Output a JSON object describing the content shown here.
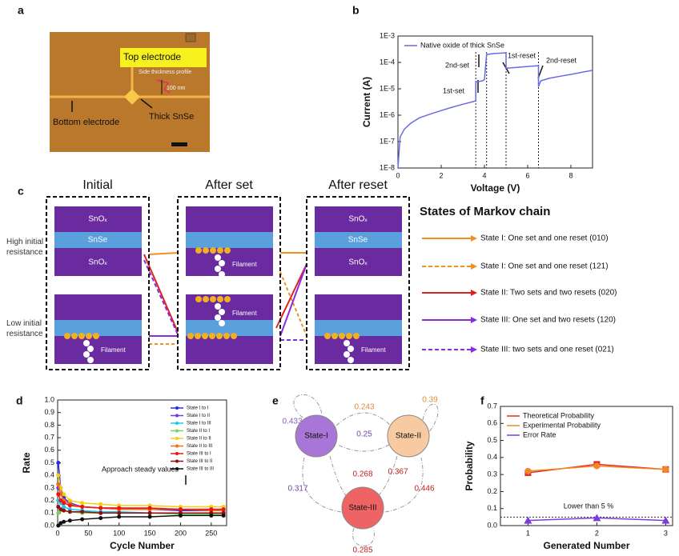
{
  "panel_a": {
    "label": "a",
    "texts": [
      "Top electrode",
      "Side thickness profile",
      "100 nm",
      "Bottom electrode",
      "Thick SnSe"
    ]
  },
  "panel_c": {
    "label": "c",
    "columns": [
      "Initial",
      "After set",
      "After reset"
    ],
    "rows": [
      "High initial resistance",
      "Low initial resistance"
    ],
    "layers": [
      "SnOₓ",
      "SnSe",
      "SnOₓ"
    ],
    "filament": "Filament",
    "legend_title": "States of Markov chain",
    "legend": [
      {
        "name": "State I: One set and one reset (010)",
        "color": "#f0901e",
        "dashed": false
      },
      {
        "name": "State I: One set and one reset (121)",
        "color": "#f0901e",
        "dashed": true
      },
      {
        "name": "State II: Two sets and two resets (020)",
        "color": "#e02020",
        "dashed": false
      },
      {
        "name": "State III: One set and two resets (120)",
        "color": "#8a2be2",
        "dashed": false
      },
      {
        "name": "State III: two sets and one reset (021)",
        "color": "#8a2be2",
        "dashed": true
      }
    ]
  },
  "panel_e": {
    "label": "e",
    "nodes": [
      {
        "label": "State-I",
        "color": "#a776d6"
      },
      {
        "label": "State-II",
        "color": "#f7caa2"
      },
      {
        "label": "State-III",
        "color": "#ee6464"
      }
    ],
    "edges": [
      {
        "value": 0.433,
        "color": "#8a5cc4"
      },
      {
        "value": 0.243,
        "color": "#e0893a"
      },
      {
        "value": 0.39,
        "color": "#e0893a"
      },
      {
        "value": 0.25,
        "color": "#7040b0"
      },
      {
        "value": 0.268,
        "color": "#c02020"
      },
      {
        "value": 0.367,
        "color": "#c02020"
      },
      {
        "value": 0.317,
        "color": "#7040b0"
      },
      {
        "value": 0.446,
        "color": "#c02020"
      },
      {
        "value": 0.285,
        "color": "#c02020"
      }
    ]
  },
  "chart_data": [
    {
      "type": "line",
      "panel_label": "b",
      "yscale": "log",
      "xlabel": "Voltage (V)",
      "ylabel": "Current (A)",
      "xlim": [
        0,
        9
      ],
      "xticks": [
        0,
        2,
        4,
        6,
        8
      ],
      "ylim": [
        1e-08,
        0.001
      ],
      "yticks": [
        {
          "value": 1e-08,
          "label": "1E-8"
        },
        {
          "value": 1e-07,
          "label": "1E-7"
        },
        {
          "value": 1e-06,
          "label": "1E-6"
        },
        {
          "value": 1e-05,
          "label": "1E-5"
        },
        {
          "value": 0.0001,
          "label": "1E-4"
        },
        {
          "value": 0.001,
          "label": "1E-3"
        }
      ],
      "legend": "upper left",
      "vlines": [
        3.6,
        4.1,
        5.0,
        6.5
      ],
      "annotations": [
        "1st-set",
        "2nd-set",
        "1st-reset",
        "2nd-reset"
      ],
      "x": [
        0,
        0.1,
        0.3,
        0.6,
        1,
        1.5,
        2,
        2.5,
        3,
        3.5,
        3.6,
        3.6,
        3.9,
        4.0,
        4.1,
        4.5,
        5.0,
        5.0,
        5.5,
        6.0,
        6.5,
        6.5,
        6.6,
        7,
        7.5,
        8,
        8.5,
        9
      ],
      "series": [
        {
          "name": "Native oxide of thick SnSe",
          "color": "#6a6ae6",
          "values": [
            1e-08,
            1.5e-07,
            3e-07,
            5e-07,
            8e-07,
            1.1e-06,
            1.5e-06,
            2e-06,
            2.6e-06,
            3.3e-06,
            3.5e-06,
            1.8e-05,
            2e-05,
            2.2e-05,
            0.0002,
            0.00022,
            0.00023,
            6e-05,
            6.5e-05,
            7e-05,
            7.5e-05,
            1.2e-05,
            2e-05,
            2.5e-05,
            3e-05,
            3.5e-05,
            4.2e-05,
            5e-05
          ]
        }
      ]
    },
    {
      "type": "line",
      "panel_label": "d",
      "xlabel": "Cycle Number",
      "ylabel": "Rate",
      "xlim": [
        0,
        275
      ],
      "xticks": [
        0,
        50,
        100,
        150,
        200,
        250
      ],
      "ylim": [
        0,
        1.0
      ],
      "yticks": [
        {
          "value": 0,
          "label": "0.0"
        },
        {
          "value": 0.1,
          "label": "0.1"
        },
        {
          "value": 0.2,
          "label": "0.2"
        },
        {
          "value": 0.3,
          "label": "0.3"
        },
        {
          "value": 0.4,
          "label": "0.4"
        },
        {
          "value": 0.5,
          "label": "0.5"
        },
        {
          "value": 0.6,
          "label": "0.6"
        },
        {
          "value": 0.7,
          "label": "0.7"
        },
        {
          "value": 0.8,
          "label": "0.8"
        },
        {
          "value": 0.9,
          "label": "0.9"
        },
        {
          "value": 1.0,
          "label": "1.0"
        }
      ],
      "legend": "upper right",
      "annotations": [
        "Approach steady values"
      ],
      "x": [
        1,
        5,
        10,
        20,
        40,
        70,
        100,
        150,
        200,
        250,
        270
      ],
      "series": [
        {
          "name": "State I to I",
          "color": "#2a2af0",
          "values": [
            0.5,
            0.3,
            0.22,
            0.18,
            0.15,
            0.14,
            0.13,
            0.13,
            0.12,
            0.12,
            0.12
          ]
        },
        {
          "name": "State I to II",
          "color": "#6a3cf0",
          "values": [
            0.3,
            0.25,
            0.2,
            0.17,
            0.15,
            0.14,
            0.14,
            0.13,
            0.13,
            0.13,
            0.13
          ]
        },
        {
          "name": "State I to III",
          "color": "#19c8f0",
          "values": [
            0.2,
            0.18,
            0.15,
            0.13,
            0.12,
            0.11,
            0.11,
            0.1,
            0.1,
            0.1,
            0.1
          ]
        },
        {
          "name": "State II to I",
          "color": "#7ccf5a",
          "values": [
            0.1,
            0.12,
            0.12,
            0.11,
            0.1,
            0.1,
            0.1,
            0.1,
            0.09,
            0.09,
            0.09
          ]
        },
        {
          "name": "State II to II",
          "color": "#f0d010",
          "values": [
            0.4,
            0.3,
            0.25,
            0.2,
            0.18,
            0.17,
            0.16,
            0.16,
            0.15,
            0.15,
            0.15
          ]
        },
        {
          "name": "State II to III",
          "color": "#f07010",
          "values": [
            0.33,
            0.25,
            0.2,
            0.17,
            0.15,
            0.14,
            0.13,
            0.13,
            0.13,
            0.12,
            0.12
          ]
        },
        {
          "name": "State III to I",
          "color": "#f01010",
          "values": [
            0.25,
            0.2,
            0.18,
            0.16,
            0.15,
            0.14,
            0.14,
            0.14,
            0.13,
            0.13,
            0.13
          ]
        },
        {
          "name": "State III to II",
          "color": "#8c1010",
          "values": [
            0.15,
            0.13,
            0.12,
            0.11,
            0.11,
            0.1,
            0.1,
            0.1,
            0.1,
            0.1,
            0.1
          ]
        },
        {
          "name": "State III to III",
          "color": "#101010",
          "values": [
            0,
            0.02,
            0.03,
            0.04,
            0.05,
            0.06,
            0.07,
            0.07,
            0.08,
            0.08,
            0.08
          ]
        }
      ]
    },
    {
      "type": "line",
      "panel_label": "f",
      "xlabel": "Generated Number",
      "ylabel": "Probability",
      "xlim": [
        0.6,
        3.1
      ],
      "xticks": [
        1,
        2,
        3
      ],
      "ylim": [
        0,
        0.7
      ],
      "yticks": [
        {
          "value": 0,
          "label": "0.0"
        },
        {
          "value": 0.1,
          "label": "0.1"
        },
        {
          "value": 0.2,
          "label": "0.2"
        },
        {
          "value": 0.3,
          "label": "0.3"
        },
        {
          "value": 0.4,
          "label": "0.4"
        },
        {
          "value": 0.5,
          "label": "0.5"
        },
        {
          "value": 0.6,
          "label": "0.6"
        },
        {
          "value": 0.7,
          "label": "0.7"
        }
      ],
      "legend": "upper left",
      "hline": 0.05,
      "annotations": [
        "Lower than 5 %"
      ],
      "x": [
        1,
        2,
        3
      ],
      "series": [
        {
          "name": "Theoretical Probability",
          "color": "#e02a2a",
          "marker": "square",
          "values": [
            0.31,
            0.36,
            0.33
          ]
        },
        {
          "name": "Experimental Probability",
          "color": "#f08a20",
          "marker": "circle",
          "values": [
            0.32,
            0.35,
            0.33
          ]
        },
        {
          "name": "Error Rate",
          "color": "#7a3ce0",
          "marker": "triangle",
          "values": [
            0.03,
            0.045,
            0.03
          ]
        }
      ]
    }
  ]
}
